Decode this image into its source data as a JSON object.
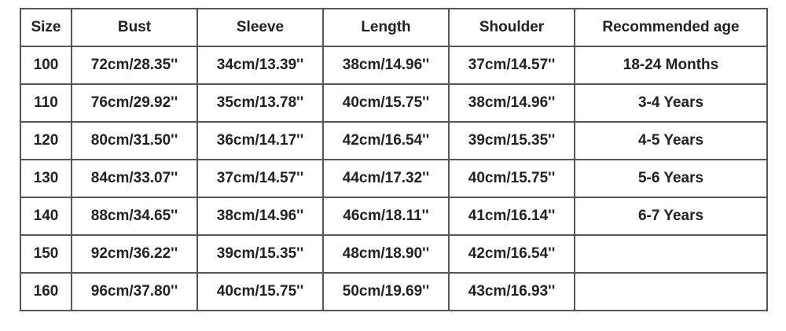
{
  "headers": [
    "Size",
    "Bust",
    "Sleeve",
    "Length",
    "Shoulder",
    "Recommended age"
  ],
  "rows": [
    [
      "100",
      "72cm/28.35''",
      "34cm/13.39''",
      "38cm/14.96''",
      "37cm/14.57''",
      "18-24 Months"
    ],
    [
      "110",
      "76cm/29.92''",
      "35cm/13.78''",
      "40cm/15.75''",
      "38cm/14.96''",
      "3-4 Years"
    ],
    [
      "120",
      "80cm/31.50''",
      "36cm/14.17''",
      "42cm/16.54''",
      "39cm/15.35''",
      "4-5 Years"
    ],
    [
      "130",
      "84cm/33.07''",
      "37cm/14.57''",
      "44cm/17.32''",
      "40cm/15.75''",
      "5-6 Years"
    ],
    [
      "140",
      "88cm/34.65''",
      "38cm/14.96''",
      "46cm/18.11''",
      "41cm/16.14''",
      "6-7 Years"
    ],
    [
      "150",
      "92cm/36.22''",
      "39cm/15.35''",
      "48cm/18.90''",
      "42cm/16.54''",
      ""
    ],
    [
      "160",
      "96cm/37.80''",
      "40cm/15.75''",
      "50cm/19.69''",
      "43cm/16.93''",
      ""
    ]
  ]
}
